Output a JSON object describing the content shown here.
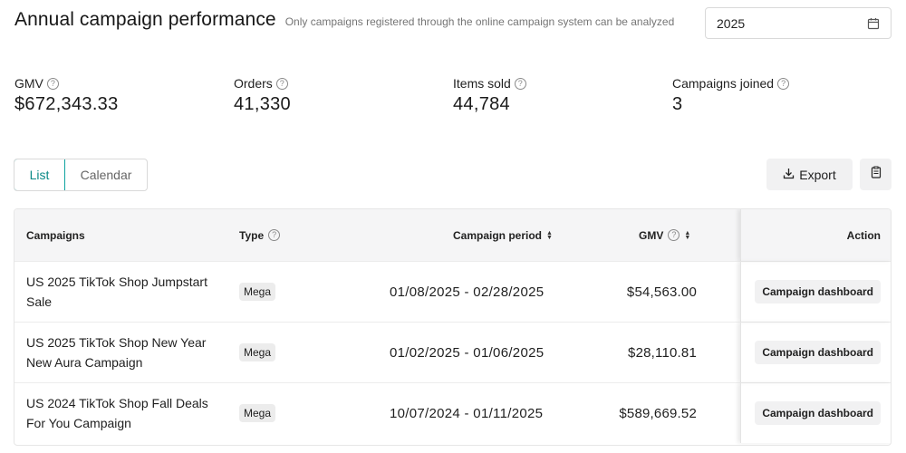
{
  "header": {
    "title": "Annual campaign performance",
    "subtitle": "Only campaigns registered through the online campaign system can be analyzed"
  },
  "year_select": {
    "value": "2025",
    "icon": "calendar-icon"
  },
  "metrics": [
    {
      "label": "GMV",
      "value": "$672,343.33"
    },
    {
      "label": "Orders",
      "value": "41,330"
    },
    {
      "label": "Items sold",
      "value": "44,784"
    },
    {
      "label": "Campaigns joined",
      "value": "3"
    }
  ],
  "view_toggle": {
    "list": "List",
    "calendar": "Calendar",
    "active": "List"
  },
  "toolbar": {
    "export_label": "Export"
  },
  "table": {
    "headers": {
      "campaigns": "Campaigns",
      "type": "Type",
      "period": "Campaign period",
      "gmv": "GMV",
      "action": "Action"
    },
    "rows": [
      {
        "name": "US 2025 TikTok Shop Jumpstart Sale",
        "type": "Mega",
        "period": "01/08/2025 - 02/28/2025",
        "gmv": "$54,563.00",
        "action": "Campaign dashboard"
      },
      {
        "name": "US 2025 TikTok Shop New Year New Aura Campaign",
        "type": "Mega",
        "period": "01/02/2025 - 01/06/2025",
        "gmv": "$28,110.81",
        "action": "Campaign dashboard"
      },
      {
        "name": "US 2024 TikTok Shop Fall Deals For You Campaign",
        "type": "Mega",
        "period": "10/07/2024 - 01/11/2025",
        "gmv": "$589,669.52",
        "action": "Campaign dashboard"
      }
    ]
  },
  "colors": {
    "accent": "#0fa3a0",
    "button_bg": "#f1f1f2",
    "header_bg": "#f5f5f6"
  }
}
